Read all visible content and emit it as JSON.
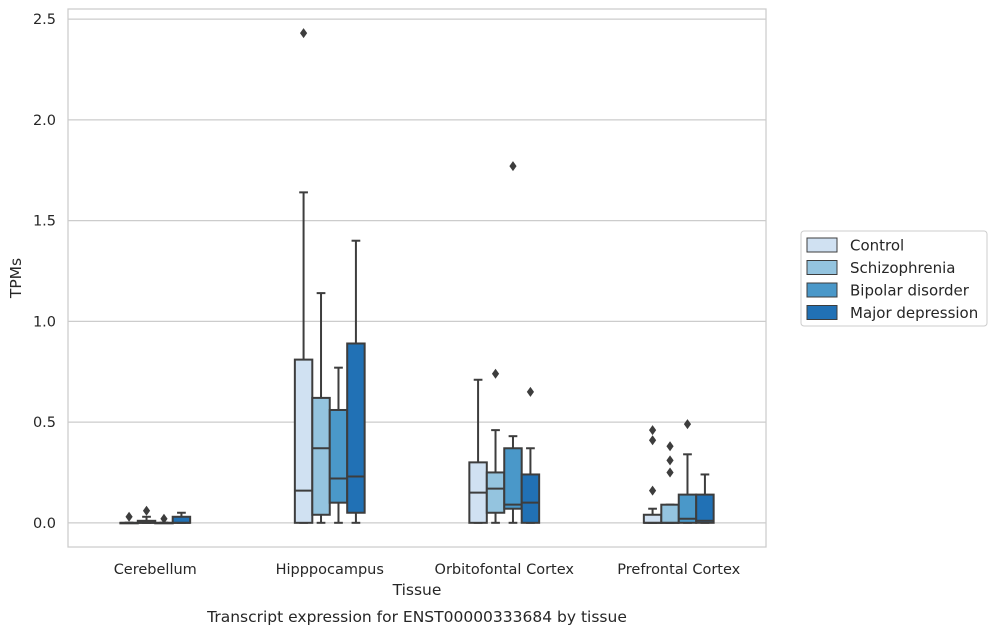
{
  "chart_data": {
    "type": "box",
    "caption": "Transcript expression for ENST00000333684 by tissue",
    "xlabel": "Tissue",
    "ylabel": "TPMs",
    "ylim": [
      -0.12,
      2.55
    ],
    "yticks": [
      0.0,
      0.5,
      1.0,
      1.5,
      2.0,
      2.5
    ],
    "ytick_labels": [
      "0.0",
      "0.5",
      "1.0",
      "1.5",
      "2.0",
      "2.5"
    ],
    "grid": "horizontal",
    "legend_position": "right",
    "categories": [
      "Cerebellum",
      "Hipppocampus",
      "Orbitofontal Cortex",
      "Prefrontal Cortex"
    ],
    "series": [
      {
        "name": "Control",
        "color": "#d0e1f2",
        "boxes": [
          {
            "q1": 0.0,
            "median": 0.0,
            "q3": 0.0,
            "whisker_low": 0.0,
            "whisker_high": 0.0,
            "outliers": [
              0.03
            ]
          },
          {
            "q1": 0.0,
            "median": 0.16,
            "q3": 0.81,
            "whisker_low": 0.0,
            "whisker_high": 1.64,
            "outliers": [
              2.43
            ]
          },
          {
            "q1": 0.0,
            "median": 0.15,
            "q3": 0.3,
            "whisker_low": 0.0,
            "whisker_high": 0.71,
            "outliers": []
          },
          {
            "q1": 0.0,
            "median": 0.0,
            "q3": 0.04,
            "whisker_low": 0.0,
            "whisker_high": 0.07,
            "outliers": [
              0.16,
              0.41,
              0.46
            ]
          }
        ]
      },
      {
        "name": "Schizophrenia",
        "color": "#94c4df",
        "boxes": [
          {
            "q1": 0.0,
            "median": 0.0,
            "q3": 0.01,
            "whisker_low": 0.0,
            "whisker_high": 0.03,
            "outliers": [
              0.06
            ]
          },
          {
            "q1": 0.04,
            "median": 0.37,
            "q3": 0.62,
            "whisker_low": 0.0,
            "whisker_high": 1.14,
            "outliers": []
          },
          {
            "q1": 0.05,
            "median": 0.17,
            "q3": 0.25,
            "whisker_low": 0.0,
            "whisker_high": 0.46,
            "outliers": [
              0.74
            ]
          },
          {
            "q1": 0.0,
            "median": 0.0,
            "q3": 0.09,
            "whisker_low": 0.0,
            "whisker_high": 0.09,
            "outliers": [
              0.25,
              0.31,
              0.38
            ]
          }
        ]
      },
      {
        "name": "Bipolar disorder",
        "color": "#4a98c9",
        "boxes": [
          {
            "q1": 0.0,
            "median": 0.0,
            "q3": 0.0,
            "whisker_low": 0.0,
            "whisker_high": 0.0,
            "outliers": [
              0.02
            ]
          },
          {
            "q1": 0.1,
            "median": 0.22,
            "q3": 0.56,
            "whisker_low": 0.0,
            "whisker_high": 0.77,
            "outliers": []
          },
          {
            "q1": 0.07,
            "median": 0.09,
            "q3": 0.37,
            "whisker_low": 0.0,
            "whisker_high": 0.43,
            "outliers": [
              1.77
            ]
          },
          {
            "q1": 0.0,
            "median": 0.02,
            "q3": 0.14,
            "whisker_low": 0.0,
            "whisker_high": 0.34,
            "outliers": [
              0.49
            ]
          }
        ]
      },
      {
        "name": "Major depression",
        "color": "#2171b5",
        "boxes": [
          {
            "q1": 0.0,
            "median": 0.0,
            "q3": 0.03,
            "whisker_low": 0.0,
            "whisker_high": 0.05,
            "outliers": []
          },
          {
            "q1": 0.05,
            "median": 0.23,
            "q3": 0.89,
            "whisker_low": 0.0,
            "whisker_high": 1.4,
            "outliers": []
          },
          {
            "q1": 0.0,
            "median": 0.1,
            "q3": 0.24,
            "whisker_low": 0.0,
            "whisker_high": 0.37,
            "outliers": [
              0.65
            ]
          },
          {
            "q1": 0.0,
            "median": 0.01,
            "q3": 0.14,
            "whisker_low": 0.0,
            "whisker_high": 0.24,
            "outliers": []
          }
        ]
      }
    ]
  }
}
